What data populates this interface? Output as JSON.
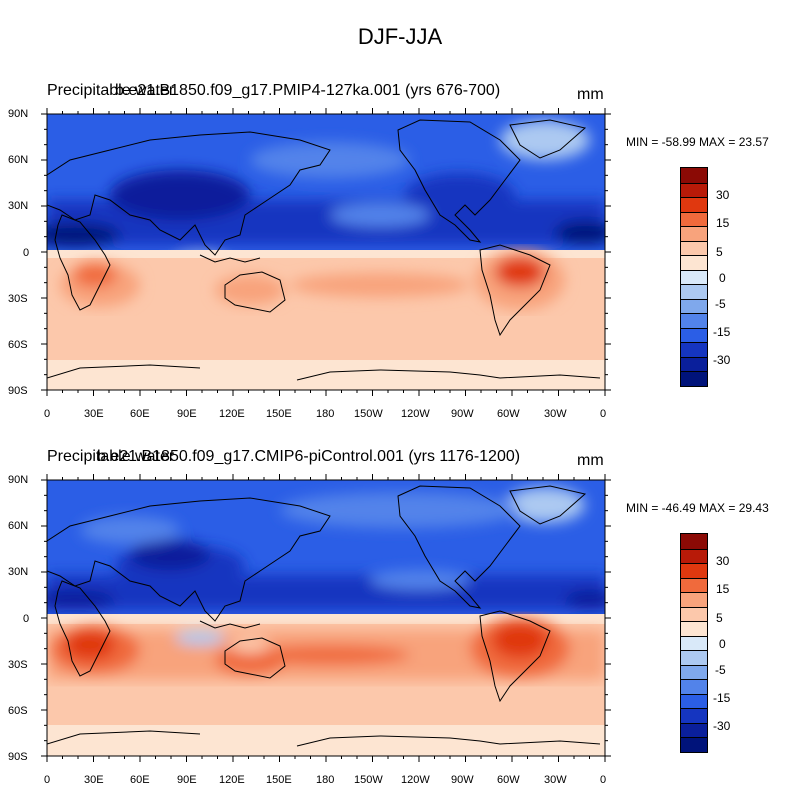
{
  "figure": {
    "title": "DJF-JJA",
    "ylabels": [
      "90N",
      "60N",
      "30N",
      "0",
      "30S",
      "60S",
      "90S"
    ],
    "xlabels": [
      "0",
      "30E",
      "60E",
      "90E",
      "120E",
      "150E",
      "180",
      "150W",
      "120W",
      "90W",
      "60W",
      "30W",
      "0"
    ],
    "colorbar_labels": [
      "30",
      "15",
      "5",
      "0",
      "-5",
      "-15",
      "-30"
    ],
    "colorbar_colors": [
      "#8b0a05",
      "#b81a08",
      "#e0380f",
      "#f06a3c",
      "#f8a37c",
      "#fcc8ab",
      "#fde5d2",
      "#d9e9f9",
      "#acc9f1",
      "#7fa8ec",
      "#5283ea",
      "#2b5ee6",
      "#1535c0",
      "#0a1f9b",
      "#00137a"
    ]
  },
  "panels": [
    {
      "left_string": "Precipitable water",
      "center_string": "b.e21.B1850.f09_g17.PMIP4-127ka.001 (yrs 676-700)",
      "units": "mm",
      "min_label": "MIN = -58.99",
      "max_label": "MAX =  23.57"
    },
    {
      "left_string": "Precipitable water",
      "center_string": "b.e21.B1850.f09_g17.CMIP6-piControl.001 (yrs 1176-1200)",
      "units": "mm",
      "min_label": "MIN = -46.49",
      "max_label": "MAX =  29.43"
    }
  ]
}
